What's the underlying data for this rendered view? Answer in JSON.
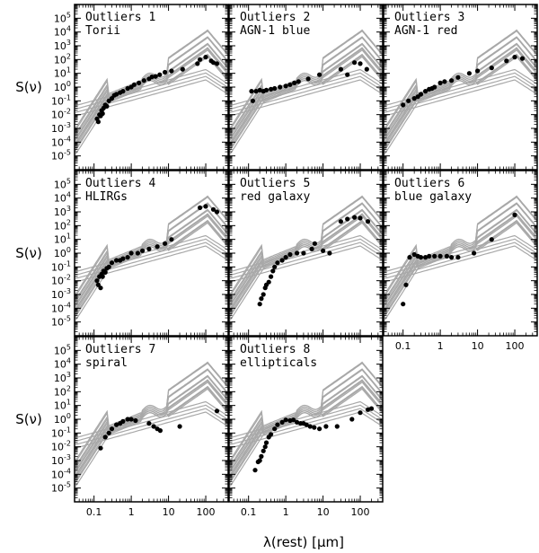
{
  "chart_data": {
    "type": "scatter",
    "ylabel": "S(ν)",
    "xlabel": "λ(rest) [μm]",
    "x_scale": "log",
    "y_scale": "log",
    "xlim": [
      0.03,
      400
    ],
    "ylim": [
      1e-06,
      1000000.0
    ],
    "x_tick_labels": [
      {
        "value": 0.1,
        "label": "0.1"
      },
      {
        "value": 1,
        "label": "1"
      },
      {
        "value": 10,
        "label": "10"
      },
      {
        "value": 100,
        "label": "100"
      }
    ],
    "y_tick_labels": [
      {
        "value": 100000.0,
        "label": "10^5"
      },
      {
        "value": 10000.0,
        "label": "10^4"
      },
      {
        "value": 1000.0,
        "label": "10^3"
      },
      {
        "value": 100.0,
        "label": "10^2"
      },
      {
        "value": 10.0,
        "label": "10^1"
      },
      {
        "value": 1,
        "label": "10^0"
      },
      {
        "value": 0.1,
        "label": "10^-1"
      },
      {
        "value": 0.01,
        "label": "10^-2"
      },
      {
        "value": 0.001,
        "label": "10^-3"
      },
      {
        "value": 0.0001,
        "label": "10^-4"
      },
      {
        "value": 1e-05,
        "label": "10^-5"
      }
    ],
    "template_color": "#a8a8a8",
    "point_color": "#000000",
    "panels": [
      {
        "title": "Outliers 1",
        "subtitle": "Torii",
        "points": [
          [
            0.12,
            0.005
          ],
          [
            0.13,
            0.003
          ],
          [
            0.14,
            0.01
          ],
          [
            0.15,
            0.008
          ],
          [
            0.16,
            0.02
          ],
          [
            0.17,
            0.012
          ],
          [
            0.18,
            0.03
          ],
          [
            0.2,
            0.05
          ],
          [
            0.22,
            0.04
          ],
          [
            0.25,
            0.1
          ],
          [
            0.3,
            0.15
          ],
          [
            0.35,
            0.25
          ],
          [
            0.4,
            0.3
          ],
          [
            0.5,
            0.4
          ],
          [
            0.6,
            0.5
          ],
          [
            0.8,
            0.8
          ],
          [
            1.0,
            1.0
          ],
          [
            1.2,
            1.5
          ],
          [
            1.6,
            2.0
          ],
          [
            2.2,
            3.0
          ],
          [
            3.0,
            4.0
          ],
          [
            3.6,
            5.5
          ],
          [
            4.5,
            6.0
          ],
          [
            5.8,
            8.0
          ],
          [
            8.0,
            12.0
          ],
          [
            12.0,
            15.0
          ],
          [
            24.0,
            20.0
          ],
          [
            60.0,
            50.0
          ],
          [
            70.0,
            100.0
          ],
          [
            100.0,
            150.0
          ],
          [
            140.0,
            80.0
          ],
          [
            160.0,
            60.0
          ],
          [
            200.0,
            50.0
          ]
        ]
      },
      {
        "title": "Outliers 2",
        "subtitle": "AGN-1 blue",
        "points": [
          [
            0.12,
            0.5
          ],
          [
            0.13,
            0.1
          ],
          [
            0.16,
            0.5
          ],
          [
            0.2,
            0.6
          ],
          [
            0.25,
            0.5
          ],
          [
            0.3,
            0.6
          ],
          [
            0.4,
            0.7
          ],
          [
            0.5,
            0.8
          ],
          [
            0.7,
            1.0
          ],
          [
            1.0,
            1.2
          ],
          [
            1.3,
            1.5
          ],
          [
            1.7,
            2.0
          ],
          [
            2.2,
            2.5
          ],
          [
            4.0,
            4.0
          ],
          [
            8.0,
            8.0
          ],
          [
            30.0,
            20.0
          ],
          [
            45.0,
            8.0
          ],
          [
            70.0,
            60.0
          ],
          [
            100.0,
            50.0
          ],
          [
            150.0,
            20.0
          ]
        ]
      },
      {
        "title": "Outliers 3",
        "subtitle": "AGN-1 red",
        "points": [
          [
            0.1,
            0.05
          ],
          [
            0.14,
            0.1
          ],
          [
            0.2,
            0.15
          ],
          [
            0.25,
            0.2
          ],
          [
            0.3,
            0.3
          ],
          [
            0.4,
            0.5
          ],
          [
            0.5,
            0.7
          ],
          [
            0.6,
            0.8
          ],
          [
            0.7,
            1.0
          ],
          [
            1.0,
            2.0
          ],
          [
            1.3,
            2.5
          ],
          [
            2.0,
            3.0
          ],
          [
            3.0,
            5.0
          ],
          [
            6.0,
            10.0
          ],
          [
            10.0,
            15.0
          ],
          [
            24.0,
            25.0
          ],
          [
            60.0,
            80.0
          ],
          [
            100.0,
            150.0
          ],
          [
            160.0,
            120.0
          ]
        ]
      },
      {
        "title": "Outliers 4",
        "subtitle": "HLIRGs",
        "points": [
          [
            0.12,
            0.01
          ],
          [
            0.13,
            0.005
          ],
          [
            0.14,
            0.02
          ],
          [
            0.15,
            0.003
          ],
          [
            0.16,
            0.03
          ],
          [
            0.17,
            0.02
          ],
          [
            0.18,
            0.05
          ],
          [
            0.2,
            0.04
          ],
          [
            0.22,
            0.08
          ],
          [
            0.25,
            0.1
          ],
          [
            0.3,
            0.2
          ],
          [
            0.4,
            0.3
          ],
          [
            0.5,
            0.3
          ],
          [
            0.6,
            0.4
          ],
          [
            0.8,
            0.5
          ],
          [
            1.0,
            1.0
          ],
          [
            1.5,
            1.0
          ],
          [
            2.0,
            1.5
          ],
          [
            3.0,
            2.0
          ],
          [
            5.0,
            3.0
          ],
          [
            8.0,
            5.0
          ],
          [
            12.0,
            10.0
          ],
          [
            70.0,
            2000.0
          ],
          [
            100.0,
            2500.0
          ],
          [
            160.0,
            1500.0
          ],
          [
            200.0,
            1000.0
          ]
        ]
      },
      {
        "title": "Outliers 5",
        "subtitle": "red galaxy",
        "points": [
          [
            0.2,
            0.0002
          ],
          [
            0.22,
            0.0005
          ],
          [
            0.25,
            0.001
          ],
          [
            0.28,
            0.003
          ],
          [
            0.3,
            0.005
          ],
          [
            0.35,
            0.008
          ],
          [
            0.4,
            0.02
          ],
          [
            0.45,
            0.05
          ],
          [
            0.5,
            0.1
          ],
          [
            0.6,
            0.2
          ],
          [
            0.8,
            0.3
          ],
          [
            1.0,
            0.5
          ],
          [
            1.3,
            0.8
          ],
          [
            2.0,
            1.0
          ],
          [
            3.0,
            1.0
          ],
          [
            5.0,
            2.0
          ],
          [
            6.0,
            5.0
          ],
          [
            10.0,
            1.5
          ],
          [
            15.0,
            1.0
          ],
          [
            30.0,
            200.0
          ],
          [
            45.0,
            300.0
          ],
          [
            70.0,
            400.0
          ],
          [
            100.0,
            350.0
          ],
          [
            160.0,
            200.0
          ]
        ]
      },
      {
        "title": "Outliers 6",
        "subtitle": "blue galaxy",
        "points": [
          [
            0.1,
            0.0002
          ],
          [
            0.12,
            0.005
          ],
          [
            0.15,
            0.5
          ],
          [
            0.2,
            0.8
          ],
          [
            0.25,
            0.6
          ],
          [
            0.3,
            0.5
          ],
          [
            0.4,
            0.5
          ],
          [
            0.5,
            0.6
          ],
          [
            0.7,
            0.6
          ],
          [
            1.0,
            0.6
          ],
          [
            1.5,
            0.6
          ],
          [
            2.0,
            0.5
          ],
          [
            3.0,
            0.5
          ],
          [
            8.0,
            1.0
          ],
          [
            24.0,
            10.0
          ],
          [
            100.0,
            600.0
          ]
        ]
      },
      {
        "title": "Outliers 7",
        "subtitle": "spiral",
        "points": [
          [
            0.15,
            0.008
          ],
          [
            0.2,
            0.05
          ],
          [
            0.25,
            0.1
          ],
          [
            0.3,
            0.2
          ],
          [
            0.4,
            0.4
          ],
          [
            0.5,
            0.5
          ],
          [
            0.6,
            0.7
          ],
          [
            0.8,
            1.0
          ],
          [
            1.0,
            1.0
          ],
          [
            1.3,
            0.8
          ],
          [
            3.0,
            0.5
          ],
          [
            4.0,
            0.3
          ],
          [
            5.0,
            0.2
          ],
          [
            6.0,
            0.15
          ],
          [
            20.0,
            0.3
          ],
          [
            200.0,
            4.0
          ]
        ]
      },
      {
        "title": "Outliers 8",
        "subtitle": "ellipticals",
        "points": [
          [
            0.15,
            0.0002
          ],
          [
            0.18,
            0.0008
          ],
          [
            0.2,
            0.001
          ],
          [
            0.22,
            0.002
          ],
          [
            0.25,
            0.005
          ],
          [
            0.28,
            0.01
          ],
          [
            0.3,
            0.02
          ],
          [
            0.35,
            0.05
          ],
          [
            0.4,
            0.08
          ],
          [
            0.5,
            0.2
          ],
          [
            0.6,
            0.4
          ],
          [
            0.8,
            0.6
          ],
          [
            1.0,
            0.9
          ],
          [
            1.3,
            0.8
          ],
          [
            1.6,
            0.9
          ],
          [
            2.0,
            0.6
          ],
          [
            2.5,
            0.5
          ],
          [
            3.0,
            0.5
          ],
          [
            3.6,
            0.4
          ],
          [
            4.5,
            0.3
          ],
          [
            5.8,
            0.25
          ],
          [
            8.0,
            0.2
          ],
          [
            12.0,
            0.3
          ],
          [
            24.0,
            0.3
          ],
          [
            60.0,
            1.0
          ],
          [
            100.0,
            3.0
          ],
          [
            160.0,
            5.0
          ],
          [
            200.0,
            6.0
          ]
        ]
      }
    ]
  }
}
